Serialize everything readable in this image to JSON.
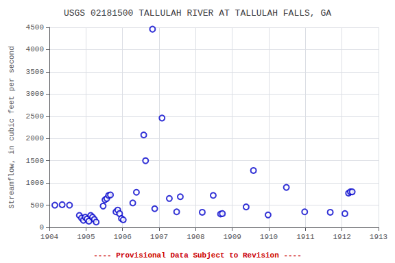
{
  "chart_data": {
    "type": "scatter",
    "title": "USGS 02181500 TALLULAH RIVER AT TALLULAH FALLS, GA",
    "ylabel": "Streamflow, in cubic feet per second",
    "annotation": "---- Provisional Data Subject to Revision ----",
    "x": [
      1904.15,
      1904.35,
      1904.55,
      1904.82,
      1904.88,
      1904.93,
      1904.98,
      1905.03,
      1905.08,
      1905.13,
      1905.18,
      1905.23,
      1905.28,
      1905.47,
      1905.52,
      1905.57,
      1905.62,
      1905.67,
      1905.82,
      1905.87,
      1905.92,
      1905.97,
      1906.02,
      1906.28,
      1906.38,
      1906.58,
      1906.63,
      1906.82,
      1906.88,
      1907.08,
      1907.28,
      1907.48,
      1907.58,
      1908.18,
      1908.48,
      1908.68,
      1908.73,
      1909.38,
      1909.58,
      1909.98,
      1910.48,
      1910.98,
      1911.68,
      1912.08,
      1912.18,
      1912.23,
      1912.28
    ],
    "values": [
      500,
      510,
      500,
      270,
      210,
      160,
      230,
      190,
      140,
      270,
      230,
      180,
      120,
      480,
      620,
      650,
      720,
      730,
      350,
      390,
      310,
      200,
      170,
      550,
      790,
      2080,
      1500,
      4460,
      420,
      2460,
      650,
      350,
      690,
      340,
      720,
      300,
      310,
      460,
      1280,
      280,
      900,
      350,
      340,
      310,
      770,
      800,
      800
    ],
    "color": "#0000CC",
    "marker": "circle",
    "xlim": [
      1904,
      1913
    ],
    "ylim": [
      0,
      4500
    ],
    "xticks": [
      1904,
      1905,
      1906,
      1907,
      1908,
      1909,
      1910,
      1911,
      1912,
      1913
    ],
    "yticks": [
      0,
      500,
      1000,
      1500,
      2000,
      2500,
      3000,
      3500,
      4000,
      4500
    ],
    "grid": true
  }
}
